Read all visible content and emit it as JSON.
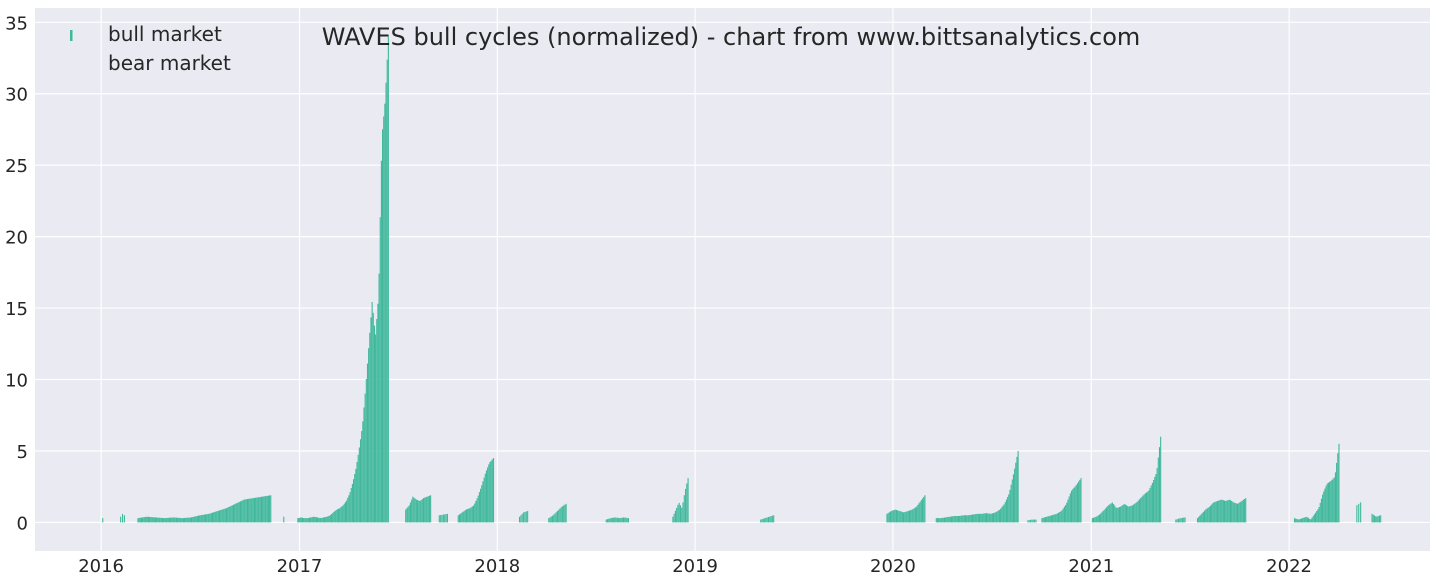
{
  "title": "WAVES bull cycles (normalized)  - chart from www.bittsanalytics.com",
  "legend": {
    "bull_label": "bull market",
    "bear_label": "bear market"
  },
  "colors": {
    "background": "#eaeaf2",
    "grid": "#ffffff",
    "bull": "#3fb89b"
  },
  "chart_data": {
    "type": "bar",
    "title": "WAVES bull cycles (normalized)  - chart from www.bittsanalytics.com",
    "xlabel": "",
    "ylabel": "",
    "ylim": [
      -2,
      36
    ],
    "xlim": [
      "2015-09-01",
      "2022-09-18"
    ],
    "x_ticks": [
      "2016",
      "2017",
      "2018",
      "2019",
      "2020",
      "2021",
      "2022"
    ],
    "y_ticks": [
      0,
      5,
      10,
      15,
      20,
      25,
      30,
      35
    ],
    "grid": true,
    "legend_position": "top-left",
    "series": [
      {
        "name": "bull market",
        "segments": [
          {
            "start": "2016-01-03",
            "end": "2016-01-06",
            "values": [
              0.3,
              0.9,
              0.5
            ]
          },
          {
            "start": "2016-02-05",
            "end": "2016-02-12",
            "values": [
              0.4,
              0.6,
              0.5
            ]
          },
          {
            "start": "2016-03-08",
            "end": "2016-11-08",
            "values": [
              0.3,
              0.4,
              0.35,
              0.3,
              0.35,
              0.3,
              0.35,
              0.5,
              0.6,
              0.8,
              1.0,
              1.3,
              1.6,
              1.7,
              1.8,
              1.9
            ]
          },
          {
            "start": "2016-12-02",
            "end": "2016-12-05",
            "values": [
              0.4
            ]
          },
          {
            "start": "2016-12-28",
            "end": "2017-06-13",
            "values": [
              0.3,
              0.35,
              0.3,
              0.3,
              0.35,
              0.4,
              0.35,
              0.3,
              0.35,
              0.4,
              0.5,
              0.7,
              0.9,
              1.0,
              1.2,
              1.5,
              2.0,
              2.8,
              3.8,
              5.2,
              6.8,
              9.5,
              12.5,
              15.5,
              13.0,
              16.0,
              27.0,
              29.5,
              34.0
            ]
          },
          {
            "start": "2017-07-15",
            "end": "2017-08-30",
            "values": [
              0.9,
              1.2,
              1.8,
              1.6,
              1.5,
              1.7,
              1.8,
              1.9
            ]
          },
          {
            "start": "2017-09-15",
            "end": "2017-09-30",
            "values": [
              0.5,
              0.6
            ]
          },
          {
            "start": "2017-10-20",
            "end": "2017-12-24",
            "values": [
              0.5,
              0.7,
              0.9,
              1.0,
              1.2,
              1.8,
              2.6,
              3.5,
              4.2,
              4.5
            ]
          },
          {
            "start": "2018-02-10",
            "end": "2018-02-25",
            "values": [
              0.4,
              0.7,
              0.8
            ]
          },
          {
            "start": "2018-04-05",
            "end": "2018-05-07",
            "values": [
              0.3,
              0.5,
              0.8,
              1.1,
              1.3
            ]
          },
          {
            "start": "2018-07-20",
            "end": "2018-08-30",
            "values": [
              0.2,
              0.3,
              0.35,
              0.3,
              0.35,
              0.3
            ]
          },
          {
            "start": "2018-11-20",
            "end": "2018-12-18",
            "values": [
              0.4,
              0.9,
              1.4,
              1.0,
              2.2,
              3.1
            ]
          },
          {
            "start": "2019-05-01",
            "end": "2019-05-25",
            "values": [
              0.2,
              0.3,
              0.4,
              0.5
            ]
          },
          {
            "start": "2019-12-20",
            "end": "2020-02-28",
            "values": [
              0.6,
              0.8,
              0.9,
              0.8,
              0.7,
              0.8,
              0.9,
              1.1,
              1.5,
              1.9
            ]
          },
          {
            "start": "2020-03-20",
            "end": "2020-08-18",
            "values": [
              0.3,
              0.3,
              0.35,
              0.4,
              0.45,
              0.45,
              0.5,
              0.5,
              0.55,
              0.6,
              0.6,
              0.65,
              0.6,
              0.7,
              0.9,
              1.3,
              2.0,
              3.4,
              5.0
            ]
          },
          {
            "start": "2020-09-05",
            "end": "2020-09-20",
            "values": [
              0.15,
              0.2,
              0.2
            ]
          },
          {
            "start": "2020-10-01",
            "end": "2020-12-12",
            "values": [
              0.3,
              0.4,
              0.5,
              0.6,
              0.8,
              1.3,
              2.2,
              2.6,
              3.1
            ]
          },
          {
            "start": "2021-01-02",
            "end": "2021-05-08",
            "values": [
              0.3,
              0.4,
              0.6,
              0.9,
              1.2,
              1.4,
              1.0,
              1.1,
              1.3,
              1.1,
              1.2,
              1.4,
              1.7,
              2.0,
              2.2,
              2.8,
              3.5,
              6.0
            ]
          },
          {
            "start": "2021-06-05",
            "end": "2021-06-22",
            "values": [
              0.2,
              0.3,
              0.35
            ]
          },
          {
            "start": "2021-07-15",
            "end": "2021-10-12",
            "values": [
              0.3,
              0.6,
              0.9,
              1.1,
              1.4,
              1.5,
              1.6,
              1.5,
              1.6,
              1.4,
              1.3,
              1.5,
              1.7
            ]
          },
          {
            "start": "2022-01-10",
            "end": "2022-04-02",
            "values": [
              0.3,
              0.2,
              0.3,
              0.4,
              0.2,
              0.6,
              1.0,
              2.0,
              2.7,
              2.9,
              3.2,
              5.5
            ]
          },
          {
            "start": "2022-05-05",
            "end": "2022-05-12",
            "values": [
              1.2,
              1.4
            ]
          },
          {
            "start": "2022-06-02",
            "end": "2022-06-18",
            "values": [
              0.6,
              0.4,
              0.5
            ]
          }
        ]
      },
      {
        "name": "bear market",
        "segments": []
      }
    ]
  }
}
